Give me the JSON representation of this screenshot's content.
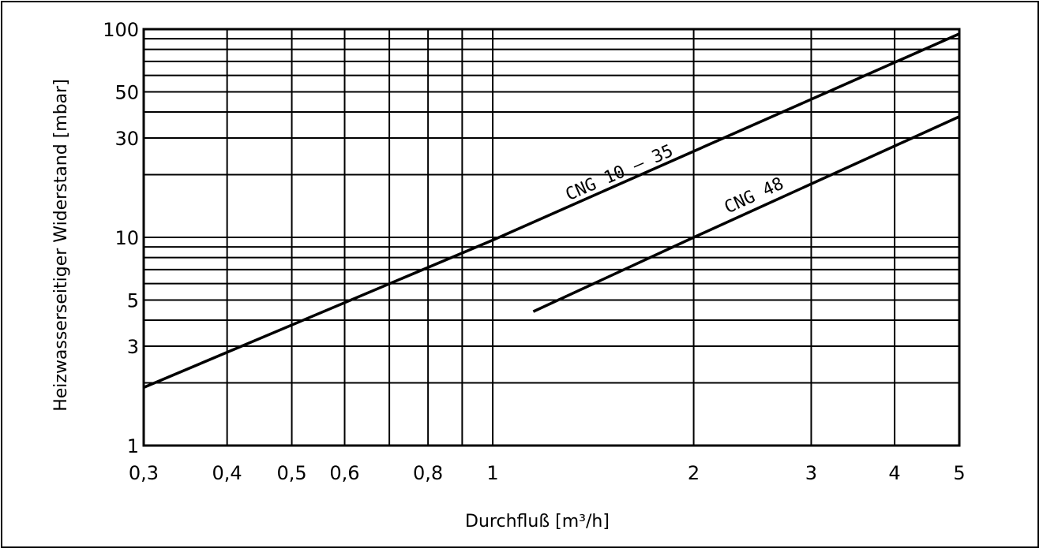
{
  "chart_data": {
    "type": "line",
    "title": "",
    "xlabel": "Durchfluß  [m³/h]",
    "ylabel": "Heizwasserseitiger Widerstand [mbar]",
    "x_scale": "log",
    "y_scale": "log",
    "xlim": [
      0.3,
      5
    ],
    "ylim": [
      1,
      100
    ],
    "x_ticks": [
      {
        "value": 0.3,
        "label": "0,3"
      },
      {
        "value": 0.4,
        "label": "0,4"
      },
      {
        "value": 0.5,
        "label": "0,5"
      },
      {
        "value": 0.6,
        "label": "0,6"
      },
      {
        "value": 0.8,
        "label": "0,8"
      },
      {
        "value": 1,
        "label": "1"
      },
      {
        "value": 2,
        "label": "2"
      },
      {
        "value": 3,
        "label": "3"
      },
      {
        "value": 4,
        "label": "4"
      },
      {
        "value": 5,
        "label": "5"
      }
    ],
    "y_ticks": [
      {
        "value": 1,
        "label": "1"
      },
      {
        "value": 3,
        "label": "3"
      },
      {
        "value": 5,
        "label": "5"
      },
      {
        "value": 10,
        "label": "10"
      },
      {
        "value": 30,
        "label": "30"
      },
      {
        "value": 50,
        "label": "50"
      },
      {
        "value": 100,
        "label": "100"
      }
    ],
    "x_grid": [
      0.3,
      0.4,
      0.5,
      0.6,
      0.7,
      0.8,
      0.9,
      1,
      2,
      3,
      4,
      5
    ],
    "y_grid": [
      1,
      2,
      3,
      4,
      5,
      6,
      7,
      8,
      9,
      10,
      20,
      30,
      40,
      50,
      60,
      70,
      80,
      90,
      100
    ],
    "grid": true,
    "legend": "none",
    "series": [
      {
        "name": "CNG 10 – 35",
        "x": [
          0.3,
          1.0,
          5.0
        ],
        "y": [
          1.9,
          9.7,
          95
        ]
      },
      {
        "name": "CNG 48",
        "x": [
          1.15,
          2.0,
          5.0
        ],
        "y": [
          4.4,
          10.0,
          38
        ]
      }
    ],
    "series_labels": [
      {
        "series": 0,
        "text": "CNG 10  – 35",
        "x": 1.3,
        "y": 15
      },
      {
        "series": 1,
        "text": "CNG 48",
        "x": 2.25,
        "y": 13
      }
    ]
  }
}
